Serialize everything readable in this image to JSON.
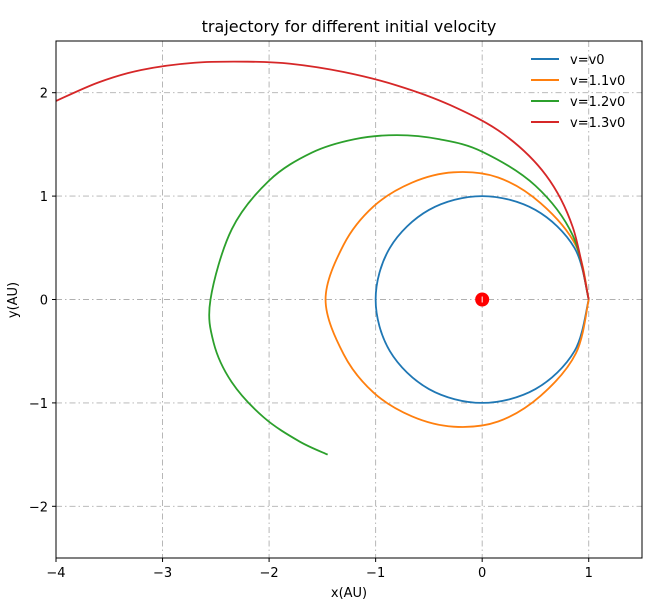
{
  "chart_data": {
    "type": "line",
    "title": "trajectory for different initial velocity",
    "xlabel": "x(AU)",
    "ylabel": "y(AU)",
    "xlim": [
      -4,
      1.5
    ],
    "ylim": [
      -2.5,
      2.5
    ],
    "xticks": [
      -4,
      -3,
      -2,
      -1,
      0,
      1
    ],
    "yticks": [
      -2,
      -1,
      0,
      1,
      2
    ],
    "xtick_labels": [
      "−4",
      "−3",
      "−2",
      "−1",
      "0",
      "1"
    ],
    "ytick_labels": [
      "−2",
      "−1",
      "0",
      "1",
      "2"
    ],
    "grid": true,
    "legend_position": "top-right",
    "series": [
      {
        "name": "v=v0",
        "color": "#1f77b4",
        "x": [
          1,
          0.866,
          0.5,
          0,
          -0.5,
          -0.866,
          -1,
          -0.866,
          -0.5,
          0,
          0.5,
          0.866,
          1
        ],
        "y": [
          0,
          0.5,
          0.866,
          1,
          0.866,
          0.5,
          0,
          -0.5,
          -0.866,
          -1,
          -0.866,
          -0.5,
          0
        ]
      },
      {
        "name": "v=1.1v0",
        "color": "#ff7f0e",
        "x": [
          1,
          0.88,
          0.55,
          0.15,
          -0.27,
          -0.66,
          -1.02,
          -1.3,
          -1.47,
          -1.3,
          -1.02,
          -0.66,
          -0.27,
          0.15,
          0.55,
          0.88,
          1
        ],
        "y": [
          0,
          0.52,
          0.93,
          1.18,
          1.23,
          1.13,
          0.9,
          0.53,
          0,
          -0.53,
          -0.9,
          -1.13,
          -1.23,
          -1.18,
          -0.93,
          -0.52,
          0
        ]
      },
      {
        "name": "v=1.2v0",
        "color": "#2ca02c",
        "x": [
          1,
          0.85,
          0.5,
          0,
          -0.4,
          -0.8,
          -1.2,
          -1.6,
          -2.0,
          -2.35,
          -2.55,
          -2.52,
          -2.35,
          -2.05,
          -1.72,
          -1.45
        ],
        "y": [
          0,
          0.62,
          1.1,
          1.43,
          1.55,
          1.59,
          1.55,
          1.42,
          1.15,
          0.68,
          0,
          -0.42,
          -0.8,
          -1.14,
          -1.37,
          -1.5
        ]
      },
      {
        "name": "v=1.3v0",
        "color": "#d62728",
        "x": [
          1,
          0.85,
          0.6,
          0.2,
          -0.3,
          -0.8,
          -1.3,
          -1.8,
          -2.2,
          -2.7,
          -3.2,
          -3.6,
          -4.0
        ],
        "y": [
          0,
          0.7,
          1.2,
          1.6,
          1.88,
          2.07,
          2.2,
          2.28,
          2.3,
          2.29,
          2.22,
          2.1,
          1.92
        ]
      }
    ],
    "points": [
      {
        "name": "sun",
        "x": 0,
        "y": 0,
        "color": "#ff0000"
      }
    ]
  }
}
